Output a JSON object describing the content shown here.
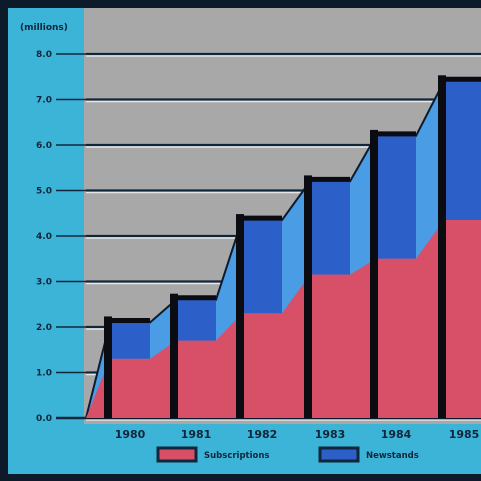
{
  "chart_data": {
    "type": "area",
    "unit_label": "(millions)",
    "ylim": [
      0,
      8.0
    ],
    "y_ticks": [
      "0.0",
      "1.0",
      "2.0",
      "3.0",
      "4.0",
      "5.0",
      "6.0",
      "7.0",
      "8.0"
    ],
    "categories": [
      "1980",
      "1981",
      "1982",
      "1983",
      "1984",
      "1985"
    ],
    "series": [
      {
        "name": "Subscriptions",
        "values": [
          1.3,
          1.7,
          2.3,
          3.15,
          3.5,
          4.35
        ]
      },
      {
        "name": "Newstands",
        "values": [
          0.8,
          0.9,
          2.05,
          2.05,
          2.7,
          3.05
        ]
      }
    ],
    "totals": [
      2.1,
      2.6,
      4.35,
      5.2,
      6.2,
      7.4
    ],
    "grid": true,
    "legend_position": "bottom",
    "colors": {
      "Subscriptions": "#d85068",
      "Newstands": "#2c60c8",
      "Newstands_ramp": "#4a9ce4",
      "background": "#a8a8a8",
      "panel": "#3cb4d8"
    }
  }
}
